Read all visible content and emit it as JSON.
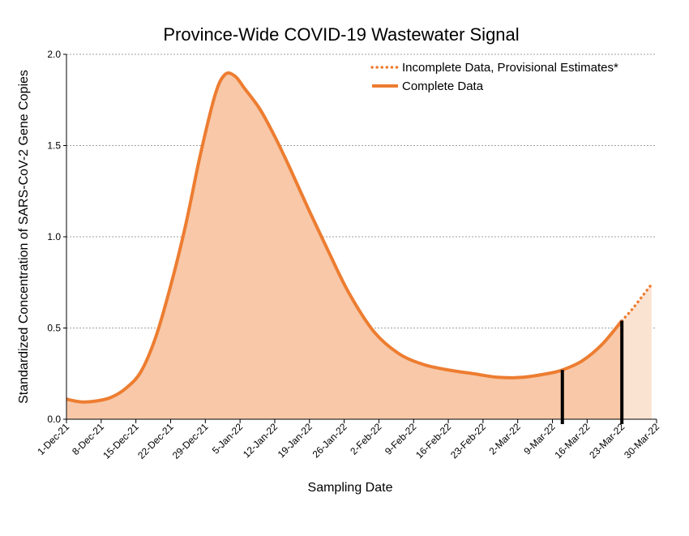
{
  "chart_data": {
    "type": "area",
    "title": "Province-Wide COVID-19 Wastewater Signal",
    "xlabel": "Sampling Date",
    "ylabel": "Standardized Concentration of SARS-CoV-2 Gene Copies",
    "ylim": [
      0,
      2.0
    ],
    "yticks": [
      "0.0",
      "0.5",
      "1.0",
      "1.5",
      "2.0"
    ],
    "xlim": [
      "2021-12-01",
      "2022-03-30"
    ],
    "xticks": [
      {
        "date": "2021-12-01",
        "label": "1-Dec-21"
      },
      {
        "date": "2021-12-08",
        "label": "8-Dec-21"
      },
      {
        "date": "2021-12-15",
        "label": "15-Dec-21"
      },
      {
        "date": "2021-12-22",
        "label": "22-Dec-21"
      },
      {
        "date": "2021-12-29",
        "label": "29-Dec-21"
      },
      {
        "date": "2022-01-05",
        "label": "5-Jan-22"
      },
      {
        "date": "2022-01-12",
        "label": "12-Jan-22"
      },
      {
        "date": "2022-01-19",
        "label": "19-Jan-22"
      },
      {
        "date": "2022-01-26",
        "label": "26-Jan-22"
      },
      {
        "date": "2022-02-02",
        "label": "2-Feb-22"
      },
      {
        "date": "2022-02-09",
        "label": "9-Feb-22"
      },
      {
        "date": "2022-02-16",
        "label": "16-Feb-22"
      },
      {
        "date": "2022-02-23",
        "label": "23-Feb-22"
      },
      {
        "date": "2022-03-02",
        "label": "2-Mar-22"
      },
      {
        "date": "2022-03-09",
        "label": "9-Mar-22"
      },
      {
        "date": "2022-03-16",
        "label": "16-Mar-22"
      },
      {
        "date": "2022-03-23",
        "label": "23-Mar-22"
      },
      {
        "date": "2022-03-30",
        "label": "30-Mar-22"
      }
    ],
    "grid": "horizontal dashed",
    "legend_position": "top-right",
    "colors": {
      "line": "#ED7D31",
      "fill_complete": "#F8C8A8",
      "fill_incomplete": "#FBE3D2",
      "markers": "#000000",
      "grid": "#808080"
    },
    "series": [
      {
        "name": "Complete Data",
        "style": "solid",
        "x": [
          "2021-12-01",
          "2021-12-04",
          "2021-12-07",
          "2021-12-10",
          "2021-12-13",
          "2021-12-16",
          "2021-12-19",
          "2021-12-22",
          "2021-12-25",
          "2021-12-28",
          "2021-12-31",
          "2022-01-02",
          "2022-01-04",
          "2022-01-06",
          "2022-01-09",
          "2022-01-12",
          "2022-01-15",
          "2022-01-19",
          "2022-01-23",
          "2022-01-27",
          "2022-02-01",
          "2022-02-06",
          "2022-02-11",
          "2022-02-16",
          "2022-02-21",
          "2022-02-26",
          "2022-03-03",
          "2022-03-08",
          "2022-03-11",
          "2022-03-15",
          "2022-03-19",
          "2022-03-23"
        ],
        "values": [
          0.11,
          0.095,
          0.1,
          0.12,
          0.17,
          0.26,
          0.45,
          0.73,
          1.06,
          1.45,
          1.78,
          1.89,
          1.88,
          1.81,
          1.7,
          1.55,
          1.38,
          1.14,
          0.91,
          0.69,
          0.48,
          0.36,
          0.3,
          0.27,
          0.25,
          0.23,
          0.23,
          0.25,
          0.27,
          0.32,
          0.41,
          0.54
        ]
      },
      {
        "name": "Incomplete Data, Provisional Estimates*",
        "style": "dotted",
        "x": [
          "2022-03-23",
          "2022-03-25",
          "2022-03-27",
          "2022-03-29"
        ],
        "values": [
          0.54,
          0.6,
          0.67,
          0.74
        ]
      }
    ],
    "markers": [
      {
        "date": "2022-03-11"
      },
      {
        "date": "2022-03-23"
      }
    ]
  }
}
